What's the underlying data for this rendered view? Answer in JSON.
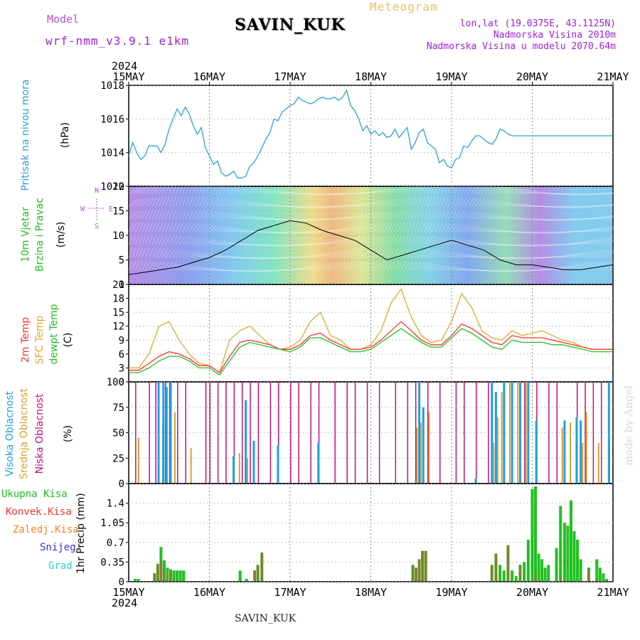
{
  "header": {
    "model_label": "Model",
    "model_name": "wrf-nmm_v3.9.1 e1km",
    "station": "SAVIN_KUK",
    "meteogram_label": "Meteogram",
    "coords": "lon,lat (19.0375E, 43.1125N)",
    "elevation": "Nadmorska Visina 2010m",
    "model_elevation": "Nadmorska Visina u modelu 2070.64m"
  },
  "footer": {
    "station": "SAVIN_KUK",
    "credit": "made by Angel"
  },
  "time_axis": {
    "year": "2024",
    "ticks": [
      "15MAY",
      "16MAY",
      "17MAY",
      "18MAY",
      "19MAY",
      "20MAY",
      "21MAY"
    ]
  },
  "colors": {
    "pressure": "#2aa0e0",
    "temp2m": "#ff3030",
    "sfc_temp": "#e0a830",
    "dewpoint": "#20c020",
    "high_cloud": "#20a0e0",
    "mid_cloud": "#d8a030",
    "low_cloud": "#c01080",
    "total_precip": "#20c020",
    "conv_precip": "#ff3030",
    "frozen_precip": "#ff8020",
    "snow": "#3030e0",
    "graupel": "#20d0d0"
  },
  "chart_data": [
    {
      "type": "line",
      "panel": "pressure",
      "ylabel_main": "Pritisak na nivou mora",
      "units": "(hPa)",
      "ylim": [
        1012,
        1018
      ],
      "yticks": [
        "1012",
        "1014",
        "1016",
        "1018"
      ],
      "x_days": [
        0,
        0.05,
        0.1,
        0.15,
        0.2,
        0.25,
        0.3,
        0.35,
        0.4,
        0.45,
        0.5,
        0.55,
        0.6,
        0.65,
        0.7,
        0.75,
        0.8,
        0.85,
        0.9,
        0.95,
        1.0,
        1.05,
        1.1,
        1.15,
        1.2,
        1.25,
        1.3,
        1.35,
        1.4,
        1.45,
        1.5,
        1.55,
        1.6,
        1.65,
        1.7,
        1.75,
        1.8,
        1.85,
        1.9,
        1.95,
        2.0,
        2.05,
        2.1,
        2.15,
        2.2,
        2.25,
        2.3,
        2.35,
        2.4,
        2.45,
        2.5,
        2.55,
        2.6,
        2.65,
        2.7,
        2.75,
        2.8,
        2.85,
        2.9,
        2.95,
        3.0,
        3.05,
        3.1,
        3.15,
        3.2,
        3.25,
        3.3,
        3.35,
        3.4,
        3.45,
        3.5,
        3.55,
        3.6,
        3.65,
        3.7,
        3.75,
        3.8,
        3.85,
        3.9,
        3.95,
        4.0,
        4.05,
        4.1,
        4.15,
        4.2,
        4.25,
        4.3,
        4.35,
        4.4,
        4.45,
        4.5,
        4.55,
        4.6,
        4.65,
        4.7,
        4.75,
        4.8,
        4.85,
        4.9,
        4.95,
        5.0,
        5.05,
        5.1,
        5.15,
        5.2,
        5.25,
        5.3,
        5.35,
        5.4,
        5.45,
        5.5,
        5.55,
        5.6,
        5.65,
        5.7,
        5.75,
        5.8,
        5.85,
        5.9,
        5.95,
        6.0
      ],
      "series": [
        {
          "values": [
            1013.8,
            1014.6,
            1014.0,
            1013.6,
            1013.8,
            1014.4,
            1014.4,
            1014.4,
            1014.0,
            1014.5,
            1015.4,
            1016.0,
            1016.6,
            1016.2,
            1016.7,
            1016.3,
            1015.6,
            1015.1,
            1015.5,
            1014.3,
            1013.8,
            1013.3,
            1013.5,
            1012.8,
            1012.6,
            1012.7,
            1012.9,
            1012.5,
            1012.5,
            1012.6,
            1013.2,
            1013.4,
            1013.8,
            1014.3,
            1014.8,
            1015.2,
            1016.0,
            1015.9,
            1016.4,
            1016.6,
            1016.8,
            1016.9,
            1017.3,
            1017.1,
            1017.0,
            1016.9,
            1017.0,
            1017.2,
            1017.3,
            1017.2,
            1017.2,
            1017.3,
            1017.1,
            1017.3,
            1017.7,
            1016.8,
            1016.5,
            1016.0,
            1015.3,
            1015.6,
            1015.1,
            1015.3,
            1015.0,
            1015.2,
            1014.9,
            1015.0,
            1015.4,
            1014.9,
            1015.2,
            1015.5,
            1014.2,
            1014.6,
            1015.2,
            1015.4,
            1014.6,
            1014.4,
            1014.2,
            1013.4,
            1013.6,
            1013.2,
            1013.1,
            1013.6,
            1013.7,
            1014.4,
            1014.3,
            1014.7,
            1015.0,
            1015.0,
            1014.8,
            1014.6,
            1014.5,
            1014.8,
            1015.4,
            1015.3,
            1015.1,
            1015.0,
            1015.0,
            1015.0,
            1015.0,
            1015.0,
            1015.0,
            1015.0,
            1015.0,
            1015.0,
            1015.0,
            1015.0,
            1015.0,
            1015.0,
            1015.0,
            1015.0,
            1015.0,
            1015.0,
            1015.0,
            1015.0,
            1015.0,
            1015.0,
            1015.0,
            1015.0,
            1015.0,
            1015.0,
            1015.0
          ]
        }
      ]
    },
    {
      "type": "line",
      "panel": "wind",
      "ylabel_lines": [
        "10m Vjetar",
        "Brzina i Pravac"
      ],
      "units": "(m/s)",
      "ylim": [
        0,
        20
      ],
      "yticks": [
        "0",
        "5",
        "10",
        "15",
        "20"
      ],
      "compass": [
        "N",
        "E",
        "S",
        "W"
      ],
      "x_days": [
        0,
        0.2,
        0.4,
        0.6,
        0.8,
        1.0,
        1.2,
        1.4,
        1.6,
        1.8,
        2.0,
        2.2,
        2.4,
        2.6,
        2.8,
        3.0,
        3.2,
        3.4,
        3.6,
        3.8,
        4.0,
        4.2,
        4.4,
        4.6,
        4.8,
        5.0,
        5.2,
        5.4,
        5.6,
        5.8,
        6.0
      ],
      "series": [
        {
          "name": "speed",
          "values": [
            2,
            2.5,
            3,
            3.5,
            4.5,
            5.5,
            7,
            9,
            11,
            12,
            13,
            12.5,
            11,
            10,
            9,
            7,
            5,
            6,
            7,
            8,
            9,
            8,
            7,
            5,
            4,
            4,
            3.5,
            3,
            3,
            3.5,
            4
          ]
        }
      ]
    },
    {
      "type": "line",
      "panel": "temperature",
      "ylabel_lines": [
        "2m Temp",
        "SFC Temp",
        "dewpt Temp"
      ],
      "units": "(C)",
      "ylim": [
        0,
        21
      ],
      "yticks": [
        "0",
        "3",
        "6",
        "9",
        "12",
        "15",
        "18",
        "21"
      ],
      "x_days": [
        0,
        0.125,
        0.25,
        0.375,
        0.5,
        0.625,
        0.75,
        0.875,
        1.0,
        1.125,
        1.25,
        1.375,
        1.5,
        1.625,
        1.75,
        1.875,
        2.0,
        2.125,
        2.25,
        2.375,
        2.5,
        2.625,
        2.75,
        2.875,
        3.0,
        3.125,
        3.25,
        3.375,
        3.5,
        3.625,
        3.75,
        3.875,
        4.0,
        4.125,
        4.25,
        4.375,
        4.5,
        4.625,
        4.75,
        4.875,
        5.0,
        5.125,
        5.25,
        5.375,
        5.5,
        5.625,
        5.75,
        5.875,
        6.0
      ],
      "series": [
        {
          "name": "sfc",
          "values": [
            3,
            3,
            6,
            12,
            13,
            9,
            6,
            4,
            3.5,
            2,
            9,
            11,
            12,
            10,
            8,
            7,
            7.5,
            9,
            13,
            15,
            10,
            9,
            7,
            7,
            8,
            11,
            17,
            20,
            14,
            10,
            8.5,
            9,
            13,
            19,
            16,
            11,
            9.5,
            9,
            11,
            10,
            10.5,
            11,
            10,
            9,
            8.5,
            7.5,
            7,
            7,
            7
          ]
        },
        {
          "name": "t2m",
          "values": [
            2.5,
            2.5,
            4,
            5.5,
            6.5,
            6,
            5,
            3.5,
            3.5,
            2,
            5.5,
            8.5,
            9,
            8.5,
            8,
            7,
            7,
            8,
            10,
            10.5,
            9,
            8,
            7,
            7,
            7.5,
            9,
            11,
            13,
            11,
            9,
            8,
            8,
            10,
            12.5,
            11.5,
            10,
            8.5,
            8,
            10,
            9.5,
            9.5,
            9.5,
            9,
            8.5,
            8,
            7.5,
            7,
            7,
            7
          ]
        },
        {
          "name": "dew",
          "values": [
            2,
            2,
            3,
            4.5,
            5.5,
            5.5,
            4.5,
            3,
            3,
            1.5,
            4.5,
            7.5,
            8.5,
            8,
            7.5,
            7,
            6.5,
            7.5,
            9.5,
            9.5,
            8.5,
            7.5,
            6.5,
            6.5,
            7,
            8.5,
            10,
            11.5,
            10,
            8.5,
            7.5,
            7.5,
            9.5,
            11.5,
            10.5,
            9,
            7.5,
            7,
            9,
            8.5,
            8.5,
            8.5,
            8,
            8,
            7.5,
            7,
            6.5,
            6.5,
            6.5
          ]
        }
      ]
    },
    {
      "type": "bar",
      "panel": "clouds",
      "ylabel_lines": [
        "Visoka Oblacnost",
        "Srednja Oblacnost",
        "Niska Oblacnost"
      ],
      "units": "(%)",
      "ylim": [
        0,
        100
      ],
      "yticks": [
        "0",
        "25",
        "50",
        "75",
        "100"
      ],
      "low": [
        [
          0.08,
          100
        ],
        [
          0.25,
          100
        ],
        [
          0.33,
          100
        ],
        [
          0.45,
          100
        ],
        [
          0.5,
          100
        ],
        [
          0.6,
          100
        ],
        [
          0.7,
          100
        ],
        [
          0.95,
          100
        ],
        [
          1.0,
          100
        ],
        [
          1.1,
          100
        ],
        [
          1.2,
          100
        ],
        [
          1.3,
          100
        ],
        [
          1.4,
          100
        ],
        [
          1.5,
          100
        ],
        [
          1.6,
          100
        ],
        [
          1.75,
          100
        ],
        [
          1.85,
          100
        ],
        [
          2.0,
          100
        ],
        [
          2.1,
          100
        ],
        [
          2.25,
          100
        ],
        [
          2.35,
          100
        ],
        [
          2.55,
          100
        ],
        [
          2.7,
          100
        ],
        [
          2.8,
          100
        ],
        [
          2.95,
          100
        ],
        [
          3.1,
          100
        ],
        [
          3.3,
          100
        ],
        [
          3.45,
          100
        ],
        [
          3.55,
          100
        ],
        [
          3.7,
          100
        ],
        [
          3.85,
          100
        ],
        [
          4.05,
          100
        ],
        [
          4.15,
          100
        ],
        [
          4.3,
          100
        ],
        [
          4.45,
          100
        ],
        [
          4.65,
          100
        ],
        [
          4.9,
          100
        ],
        [
          5.05,
          100
        ],
        [
          5.2,
          100
        ],
        [
          5.3,
          100
        ],
        [
          5.55,
          100
        ],
        [
          5.65,
          100
        ],
        [
          5.75,
          100
        ],
        [
          5.85,
          100
        ],
        [
          5.95,
          40
        ]
      ],
      "mid": [
        [
          0.1,
          45
        ],
        [
          0.35,
          30
        ],
        [
          0.4,
          60
        ],
        [
          0.55,
          70
        ],
        [
          0.75,
          35
        ],
        [
          1.35,
          30
        ],
        [
          1.45,
          25
        ],
        [
          3.55,
          55
        ],
        [
          3.6,
          60
        ],
        [
          3.7,
          70
        ],
        [
          4.5,
          40
        ],
        [
          4.55,
          65
        ],
        [
          4.6,
          90
        ],
        [
          4.7,
          100
        ],
        [
          4.8,
          100
        ],
        [
          4.9,
          100
        ],
        [
          5.35,
          55
        ],
        [
          5.45,
          60
        ],
        [
          5.6,
          40
        ],
        [
          5.65,
          70
        ],
        [
          5.8,
          40
        ]
      ],
      "high": [
        [
          0.37,
          100
        ],
        [
          0.43,
          100
        ],
        [
          0.47,
          95
        ],
        [
          0.52,
          100
        ],
        [
          1.3,
          27
        ],
        [
          1.45,
          82
        ],
        [
          1.55,
          42
        ],
        [
          1.85,
          38
        ],
        [
          2.35,
          40
        ],
        [
          3.6,
          100
        ],
        [
          3.65,
          75
        ],
        [
          4.3,
          5
        ],
        [
          4.5,
          100
        ],
        [
          4.55,
          90
        ],
        [
          4.65,
          100
        ],
        [
          4.75,
          100
        ],
        [
          4.85,
          100
        ],
        [
          4.95,
          100
        ],
        [
          5.05,
          62
        ],
        [
          5.4,
          62
        ],
        [
          5.55,
          65
        ],
        [
          5.6,
          62
        ],
        [
          5.95,
          100
        ]
      ]
    },
    {
      "type": "bar",
      "panel": "precip",
      "ylabel_main": "1hr Precip (mm)",
      "legend": [
        "Ukupna Kisa",
        "Konvek.Kisa",
        "Zaledj.Kisa",
        "Snijeg",
        "Grad"
      ],
      "ylim": [
        0,
        1.75
      ],
      "yticks": [
        "0",
        "0.35",
        "0.7",
        "1.05",
        "1.4"
      ],
      "total": [
        [
          0.08,
          0.05
        ],
        [
          0.12,
          0.05
        ],
        [
          0.32,
          0.15
        ],
        [
          0.36,
          0.32
        ],
        [
          0.4,
          0.62
        ],
        [
          0.44,
          0.38
        ],
        [
          0.48,
          0.25
        ],
        [
          0.52,
          0.22
        ],
        [
          0.56,
          0.2
        ],
        [
          0.6,
          0.2
        ],
        [
          0.64,
          0.2
        ],
        [
          0.68,
          0.2
        ],
        [
          1.38,
          0.2
        ],
        [
          1.46,
          0.05
        ],
        [
          1.56,
          0.2
        ],
        [
          1.6,
          0.3
        ],
        [
          1.65,
          0.52
        ],
        [
          3.52,
          0.3
        ],
        [
          3.56,
          0.25
        ],
        [
          3.6,
          0.4
        ],
        [
          3.64,
          0.55
        ],
        [
          3.68,
          0.55
        ],
        [
          4.5,
          0.3
        ],
        [
          4.55,
          0.5
        ],
        [
          4.6,
          0.3
        ],
        [
          4.65,
          0.2
        ],
        [
          4.7,
          0.65
        ],
        [
          4.75,
          0.2
        ],
        [
          4.8,
          0.1
        ],
        [
          4.85,
          0.3
        ],
        [
          4.9,
          0.35
        ],
        [
          4.95,
          0.75
        ],
        [
          5.0,
          1.65
        ],
        [
          5.04,
          1.7
        ],
        [
          5.08,
          0.5
        ],
        [
          5.12,
          0.4
        ],
        [
          5.16,
          0.25
        ],
        [
          5.2,
          0.3
        ],
        [
          5.3,
          0.6
        ],
        [
          5.35,
          1.35
        ],
        [
          5.4,
          1.05
        ],
        [
          5.44,
          1.0
        ],
        [
          5.48,
          1.45
        ],
        [
          5.52,
          0.9
        ],
        [
          5.56,
          0.75
        ],
        [
          5.6,
          0.4
        ],
        [
          5.7,
          0.25
        ],
        [
          5.8,
          0.4
        ],
        [
          5.84,
          0.25
        ],
        [
          5.88,
          0.15
        ],
        [
          5.92,
          0.05
        ]
      ],
      "conv": [
        [
          0.32,
          0.15
        ],
        [
          0.36,
          0.3
        ],
        [
          0.4,
          0.38
        ],
        [
          0.44,
          0.2
        ],
        [
          0.52,
          0.18
        ],
        [
          1.56,
          0.2
        ],
        [
          1.6,
          0.3
        ],
        [
          1.65,
          0.52
        ],
        [
          3.52,
          0.3
        ],
        [
          3.56,
          0.25
        ],
        [
          3.6,
          0.4
        ],
        [
          3.64,
          0.55
        ],
        [
          3.68,
          0.55
        ],
        [
          4.5,
          0.3
        ],
        [
          4.55,
          0.5
        ],
        [
          4.7,
          0.65
        ],
        [
          4.85,
          0.3
        ],
        [
          5.04,
          0.15
        ],
        [
          5.35,
          0.1
        ],
        [
          5.7,
          0.2
        ]
      ]
    }
  ]
}
